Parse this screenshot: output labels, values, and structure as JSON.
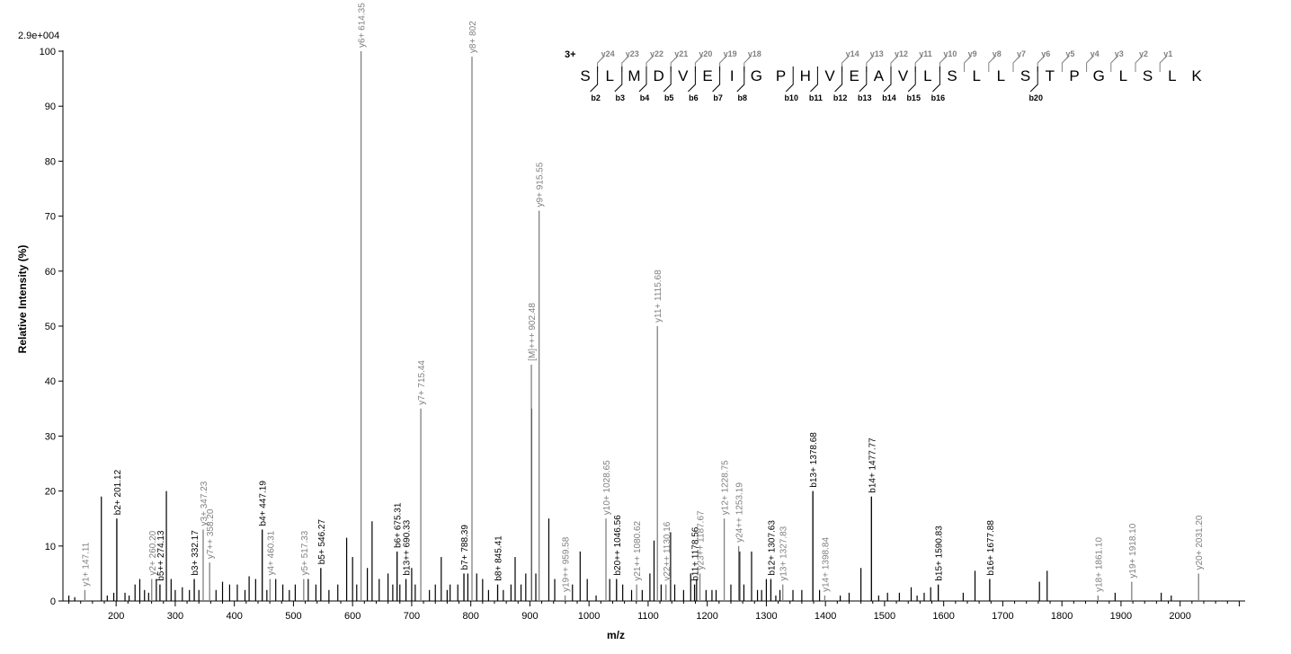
{
  "chart_data": {
    "type": "bar",
    "max_intensity_label": "2.9e+004",
    "xlabel": "m/z",
    "ylabel": "Relative   Intensity (%)",
    "xlim": [
      110,
      2110
    ],
    "ylim": [
      0,
      100
    ],
    "x_ticks": [
      200,
      300,
      400,
      500,
      600,
      700,
      800,
      900,
      1000,
      1100,
      1200,
      1300,
      1400,
      1500,
      1600,
      1700,
      1800,
      1900,
      2000
    ],
    "y_ticks": [
      0,
      10,
      20,
      30,
      40,
      50,
      60,
      70,
      80,
      90,
      100
    ],
    "colors": {
      "b_ion": "#000000",
      "y_ion": "#808080",
      "noise": "#000000"
    },
    "annotated_peaks": [
      {
        "mz": 147.11,
        "intensity": 2.0,
        "label": "y1+ 147.11",
        "ion": "y"
      },
      {
        "mz": 201.12,
        "intensity": 15.0,
        "label": "b2+ 201.12",
        "ion": "b"
      },
      {
        "mz": 260.2,
        "intensity": 4.0,
        "label": "y2+ 260.20",
        "ion": "y"
      },
      {
        "mz": 274.13,
        "intensity": 3.0,
        "label": "b5++ 274.13",
        "ion": "b"
      },
      {
        "mz": 332.17,
        "intensity": 4.0,
        "label": "b3+ 332.17",
        "ion": "b"
      },
      {
        "mz": 347.23,
        "intensity": 13.0,
        "label": "y3+ 347.23",
        "ion": "y"
      },
      {
        "mz": 358.2,
        "intensity": 7.0,
        "label": "y7++ 358.20",
        "ion": "y"
      },
      {
        "mz": 447.19,
        "intensity": 13.0,
        "label": "b4+ 447.19",
        "ion": "b"
      },
      {
        "mz": 460.31,
        "intensity": 4.0,
        "label": "y4+ 460.31",
        "ion": "y"
      },
      {
        "mz": 517.33,
        "intensity": 4.0,
        "label": "y5+ 517.33",
        "ion": "y"
      },
      {
        "mz": 546.27,
        "intensity": 6.0,
        "label": "b5+ 546.27",
        "ion": "b"
      },
      {
        "mz": 614.35,
        "intensity": 100.0,
        "label": "y6+ 614.35",
        "ion": "y"
      },
      {
        "mz": 675.31,
        "intensity": 9.0,
        "label": "b6+ 675.31",
        "ion": "b"
      },
      {
        "mz": 690.33,
        "intensity": 4.0,
        "label": "b13++ 690.33",
        "ion": "b"
      },
      {
        "mz": 715.44,
        "intensity": 35.0,
        "label": "y7+ 715.44",
        "ion": "y"
      },
      {
        "mz": 788.39,
        "intensity": 5.0,
        "label": "b7+ 788.39",
        "ion": "b"
      },
      {
        "mz": 802.0,
        "intensity": 99.0,
        "label": "y8+ 802",
        "ion": "y"
      },
      {
        "mz": 845.41,
        "intensity": 3.0,
        "label": "b8+ 845.41",
        "ion": "b"
      },
      {
        "mz": 902.48,
        "intensity": 43.0,
        "label": "[M]+++ 902.48",
        "ion": "y"
      },
      {
        "mz": 915.55,
        "intensity": 71.0,
        "label": "y9+ 915.55",
        "ion": "y"
      },
      {
        "mz": 959.58,
        "intensity": 1.0,
        "label": "y19++ 959.58",
        "ion": "y"
      },
      {
        "mz": 1028.65,
        "intensity": 15.0,
        "label": "y10+ 1028.65",
        "ion": "y"
      },
      {
        "mz": 1046.56,
        "intensity": 4.0,
        "label": "b20++ 1046.56",
        "ion": "b"
      },
      {
        "mz": 1080.62,
        "intensity": 3.0,
        "label": "y21++ 1080.62",
        "ion": "y"
      },
      {
        "mz": 1115.68,
        "intensity": 50.0,
        "label": "y11+ 1115.68",
        "ion": "y"
      },
      {
        "mz": 1130.16,
        "intensity": 3.0,
        "label": "y22++ 1130.16",
        "ion": "y"
      },
      {
        "mz": 1178.56,
        "intensity": 3.0,
        "label": "b11+ 1178.56",
        "ion": "b"
      },
      {
        "mz": 1187.67,
        "intensity": 5.0,
        "label": "y23++ 1187.67",
        "ion": "y"
      },
      {
        "mz": 1228.75,
        "intensity": 15.0,
        "label": "y12+ 1228.75",
        "ion": "y"
      },
      {
        "mz": 1253.19,
        "intensity": 10.0,
        "label": "y24++ 1253.19",
        "ion": "y"
      },
      {
        "mz": 1307.63,
        "intensity": 4.0,
        "label": "b12+ 1307.63",
        "ion": "b"
      },
      {
        "mz": 1327.83,
        "intensity": 3.0,
        "label": "y13+ 1327.83",
        "ion": "y"
      },
      {
        "mz": 1378.68,
        "intensity": 20.0,
        "label": "b13+ 1378.68",
        "ion": "b"
      },
      {
        "mz": 1398.84,
        "intensity": 1.0,
        "label": "y14+ 1398.84",
        "ion": "y"
      },
      {
        "mz": 1477.77,
        "intensity": 19.0,
        "label": "b14+ 1477.77",
        "ion": "b"
      },
      {
        "mz": 1590.83,
        "intensity": 3.0,
        "label": "b15+ 1590.83",
        "ion": "b"
      },
      {
        "mz": 1677.88,
        "intensity": 4.0,
        "label": "b16+ 1677.88",
        "ion": "b"
      },
      {
        "mz": 1861.1,
        "intensity": 1.0,
        "label": "y18+ 1861.10",
        "ion": "y"
      },
      {
        "mz": 1918.1,
        "intensity": 3.5,
        "label": "y19+ 1918.10",
        "ion": "y"
      },
      {
        "mz": 2031.2,
        "intensity": 5.0,
        "label": "y20+ 2031.20",
        "ion": "y"
      }
    ],
    "unannotated_peaks": [
      [
        120,
        1
      ],
      [
        130,
        0.7
      ],
      [
        175,
        19
      ],
      [
        185,
        1
      ],
      [
        196,
        1.5
      ],
      [
        215,
        1.5
      ],
      [
        222,
        1
      ],
      [
        232,
        3
      ],
      [
        240,
        4
      ],
      [
        248,
        2
      ],
      [
        255,
        1.5
      ],
      [
        268,
        4
      ],
      [
        285,
        20
      ],
      [
        293,
        4
      ],
      [
        300,
        2
      ],
      [
        312,
        2.5
      ],
      [
        324,
        2
      ],
      [
        340,
        2
      ],
      [
        369,
        2
      ],
      [
        380,
        3.5
      ],
      [
        392,
        3
      ],
      [
        405,
        3
      ],
      [
        418,
        2
      ],
      [
        425,
        4.5
      ],
      [
        436,
        4
      ],
      [
        455,
        2
      ],
      [
        470,
        4
      ],
      [
        482,
        3
      ],
      [
        493,
        2
      ],
      [
        503,
        3
      ],
      [
        525,
        4
      ],
      [
        538,
        3
      ],
      [
        560,
        2
      ],
      [
        575,
        3
      ],
      [
        590,
        11.5
      ],
      [
        600,
        8
      ],
      [
        607,
        3
      ],
      [
        625,
        6
      ],
      [
        633,
        14.5
      ],
      [
        645,
        4
      ],
      [
        660,
        5
      ],
      [
        668,
        3
      ],
      [
        680,
        3
      ],
      [
        700,
        6
      ],
      [
        706,
        3
      ],
      [
        730,
        2
      ],
      [
        740,
        3
      ],
      [
        750,
        8
      ],
      [
        760,
        2
      ],
      [
        765,
        3
      ],
      [
        778,
        3
      ],
      [
        795,
        5
      ],
      [
        810,
        5
      ],
      [
        820,
        4
      ],
      [
        830,
        2
      ],
      [
        855,
        2
      ],
      [
        868,
        3
      ],
      [
        875,
        8
      ],
      [
        885,
        3
      ],
      [
        893,
        5
      ],
      [
        903,
        35
      ],
      [
        910,
        5
      ],
      [
        932,
        15
      ],
      [
        942,
        4
      ],
      [
        972,
        3
      ],
      [
        985,
        9
      ],
      [
        997,
        4
      ],
      [
        1012,
        1
      ],
      [
        1035,
        4
      ],
      [
        1057,
        3
      ],
      [
        1072,
        2
      ],
      [
        1090,
        2
      ],
      [
        1103,
        5
      ],
      [
        1110,
        11
      ],
      [
        1122,
        3
      ],
      [
        1138,
        12.5
      ],
      [
        1145,
        3
      ],
      [
        1160,
        2
      ],
      [
        1172,
        5
      ],
      [
        1182,
        4
      ],
      [
        1198,
        2
      ],
      [
        1208,
        2
      ],
      [
        1215,
        2
      ],
      [
        1240,
        3
      ],
      [
        1255,
        9
      ],
      [
        1262,
        3
      ],
      [
        1275,
        9
      ],
      [
        1285,
        2
      ],
      [
        1292,
        2
      ],
      [
        1300,
        4
      ],
      [
        1316,
        1
      ],
      [
        1323,
        2
      ],
      [
        1345,
        2
      ],
      [
        1360,
        2
      ],
      [
        1390,
        2
      ],
      [
        1425,
        1
      ],
      [
        1440,
        1.5
      ],
      [
        1460,
        6
      ],
      [
        1490,
        1
      ],
      [
        1505,
        1.5
      ],
      [
        1525,
        1.5
      ],
      [
        1545,
        2.5
      ],
      [
        1555,
        1
      ],
      [
        1567,
        1.5
      ],
      [
        1578,
        2.5
      ],
      [
        1633,
        1.5
      ],
      [
        1653,
        5.5
      ],
      [
        1762,
        3.5
      ],
      [
        1775,
        5.5
      ],
      [
        1890,
        1.5
      ],
      [
        1968,
        1.5
      ],
      [
        1985,
        1
      ]
    ],
    "sequence": {
      "charge_label": "3+",
      "residues": [
        "S",
        "L",
        "M",
        "D",
        "V",
        "E",
        "I",
        "G",
        "P",
        "H",
        "V",
        "E",
        "A",
        "V",
        "L",
        "S",
        "L",
        "L",
        "S",
        "T",
        "P",
        "G",
        "L",
        "S",
        "L",
        "K"
      ],
      "y_ions": [
        {
          "label": "y24",
          "after": 1
        },
        {
          "label": "y23",
          "after": 2
        },
        {
          "label": "y22",
          "after": 3
        },
        {
          "label": "y21",
          "after": 4
        },
        {
          "label": "y20",
          "after": 5
        },
        {
          "label": "y19",
          "after": 6
        },
        {
          "label": "y18",
          "after": 7
        },
        {
          "label": "y14",
          "after": 11
        },
        {
          "label": "y13",
          "after": 12
        },
        {
          "label": "y12",
          "after": 13
        },
        {
          "label": "y11",
          "after": 14
        },
        {
          "label": "y10",
          "after": 15
        },
        {
          "label": "y9",
          "after": 16
        },
        {
          "label": "y8",
          "after": 17
        },
        {
          "label": "y7",
          "after": 18
        },
        {
          "label": "y6",
          "after": 19
        },
        {
          "label": "y5",
          "after": 20
        },
        {
          "label": "y4",
          "after": 21
        },
        {
          "label": "y3",
          "after": 22
        },
        {
          "label": "y2",
          "after": 23
        },
        {
          "label": "y1",
          "after": 24
        }
      ],
      "b_ions": [
        {
          "label": "b2",
          "after": 1
        },
        {
          "label": "b3",
          "after": 2
        },
        {
          "label": "b4",
          "after": 3
        },
        {
          "label": "b5",
          "after": 4
        },
        {
          "label": "b6",
          "after": 5
        },
        {
          "label": "b7",
          "after": 6
        },
        {
          "label": "b8",
          "after": 7
        },
        {
          "label": "b10",
          "after": 9
        },
        {
          "label": "b11",
          "after": 10
        },
        {
          "label": "b12",
          "after": 11
        },
        {
          "label": "b13",
          "after": 12
        },
        {
          "label": "b14",
          "after": 13
        },
        {
          "label": "b15",
          "after": 14
        },
        {
          "label": "b16",
          "after": 15
        },
        {
          "label": "b20",
          "after": 19
        }
      ]
    }
  }
}
